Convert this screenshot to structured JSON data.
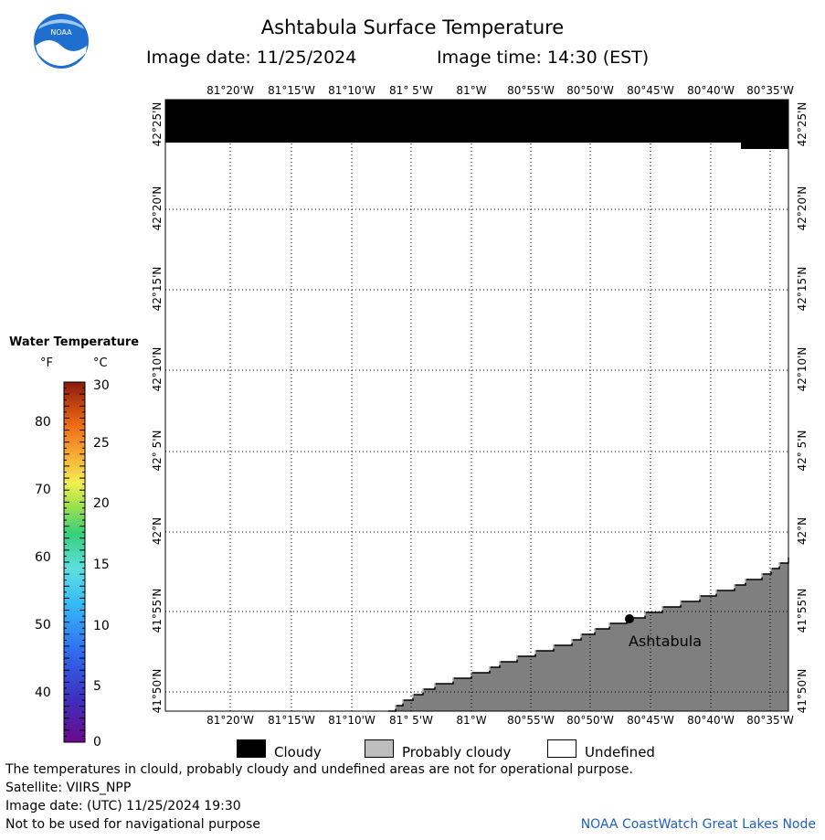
{
  "header": {
    "title": "Ashtabula Surface Temperature",
    "image_date": "Image date: 11/25/2024",
    "image_time": "Image time: 14:30 (EST)"
  },
  "logo": {
    "text": "NOAA",
    "icon": "noaa-logo"
  },
  "map": {
    "lon_labels": [
      "81°20'W",
      "81°15'W",
      "81°10'W",
      "81° 5'W",
      "81°W",
      "80°55'W",
      "80°50'W",
      "80°45'W",
      "80°40'W",
      "80°35'W"
    ],
    "lat_labels": [
      "42°25'N",
      "42°20'N",
      "42°15'N",
      "42°10'N",
      "42° 5'N",
      "42°N",
      "41°55'N",
      "41°50'N"
    ],
    "city": {
      "name": "Ashtabula"
    },
    "colors": {
      "cloudy": "#000000",
      "land": "#7f7f7f",
      "water": "#ffffff",
      "grid": "#000000"
    }
  },
  "legend": {
    "title": "Water Temperature",
    "unit_f": "°F",
    "unit_c": "°C",
    "f_ticks": [
      "80",
      "70",
      "60",
      "50",
      "40"
    ],
    "c_ticks": [
      "30",
      "25",
      "20",
      "15",
      "10",
      "5",
      "0"
    ]
  },
  "key": {
    "cloudy": "Cloudy",
    "probably_cloudy": "Probably cloudy",
    "undefined": "Undefined"
  },
  "footer": {
    "disclaimer": "The temperatures in clould, probably cloudy and undefined areas are not for operational purpose.",
    "satellite": "Satellite: VIIRS_NPP",
    "utc_date": "Image date: (UTC) 11/25/2024  19:30",
    "nav_warning": "Not to be used for navigational purpose",
    "credit": "NOAA CoastWatch Great Lakes Node"
  }
}
